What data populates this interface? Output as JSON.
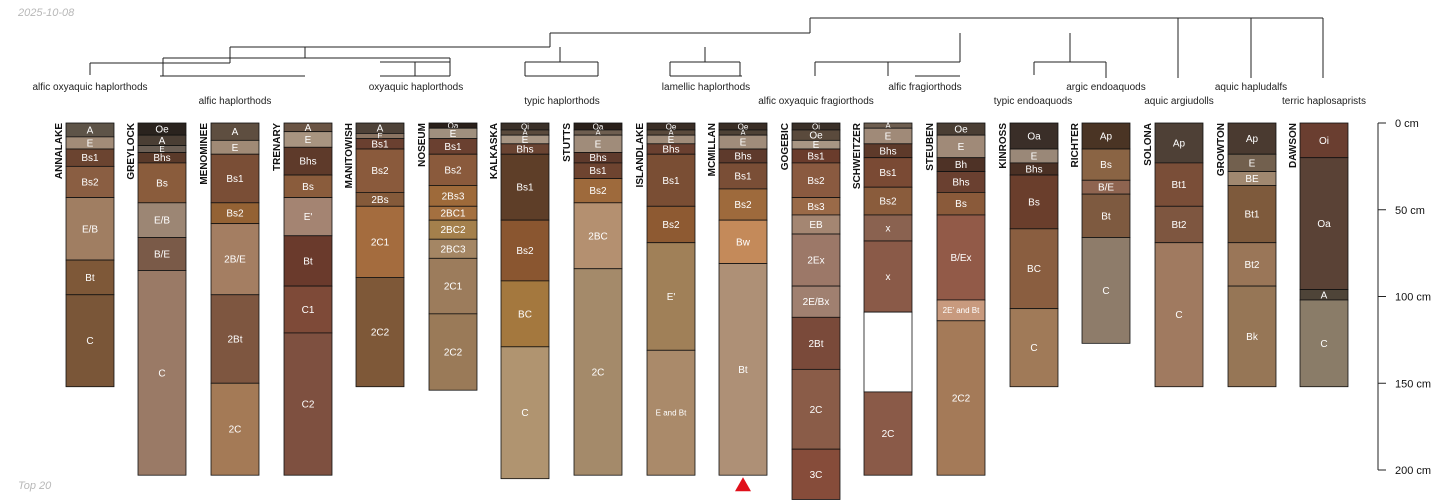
{
  "header": {
    "date": "2025-10-08"
  },
  "footer": {
    "caption": "Top 20"
  },
  "axis": {
    "unit": "cm",
    "ticks": [
      0,
      50,
      100,
      150,
      200
    ]
  },
  "taxa": [
    "alfic oxyaquic haplorthods",
    "alfic haplorthods",
    "oxyaquic haplorthods",
    "typic haplorthods",
    "lamellic haplorthods",
    "alfic oxyaquic fragiorthods",
    "alfic fragiorthods",
    "typic endoaquods",
    "argic endoaquods",
    "aquic argiudolls",
    "aquic hapludalfs",
    "terric haplosaprists"
  ],
  "profiles": [
    {
      "name": "ANNALAKE",
      "horizons": [
        {
          "name": "A",
          "top": 0,
          "bottom": 8,
          "color": "#5e5448"
        },
        {
          "name": "E",
          "top": 8,
          "bottom": 15,
          "color": "#a28c78"
        },
        {
          "name": "Bs1",
          "top": 15,
          "bottom": 25,
          "color": "#6b4430"
        },
        {
          "name": "Bs2",
          "top": 25,
          "bottom": 43,
          "color": "#8a5e42"
        },
        {
          "name": "E/B",
          "top": 43,
          "bottom": 79,
          "color": "#a07e62"
        },
        {
          "name": "Bt",
          "top": 79,
          "bottom": 99,
          "color": "#7e5838"
        },
        {
          "name": "C",
          "top": 99,
          "bottom": 152,
          "color": "#7a5638"
        }
      ]
    },
    {
      "name": "GREYLOCK",
      "horizons": [
        {
          "name": "Oe",
          "top": 0,
          "bottom": 7,
          "color": "#2a231e"
        },
        {
          "name": "A",
          "top": 7,
          "bottom": 13,
          "color": "#4a3e34"
        },
        {
          "name": "E",
          "top": 13,
          "bottom": 17,
          "color": "#6a5e54"
        },
        {
          "name": "Bhs",
          "top": 17,
          "bottom": 23,
          "color": "#5a3a2a"
        },
        {
          "name": "Bs",
          "top": 23,
          "bottom": 46,
          "color": "#8a5c3c"
        },
        {
          "name": "E/B",
          "top": 46,
          "bottom": 66,
          "color": "#9c8674"
        },
        {
          "name": "B/E",
          "top": 66,
          "bottom": 85,
          "color": "#7a5a48"
        },
        {
          "name": "C",
          "top": 85,
          "bottom": 203,
          "color": "#9a7a66"
        }
      ]
    },
    {
      "name": "MENOMINEE",
      "horizons": [
        {
          "name": "A",
          "top": 0,
          "bottom": 10,
          "color": "#5e4e40"
        },
        {
          "name": "E",
          "top": 10,
          "bottom": 18,
          "color": "#a08a76"
        },
        {
          "name": "Bs1",
          "top": 18,
          "bottom": 46,
          "color": "#7a4e36"
        },
        {
          "name": "Bs2",
          "top": 46,
          "bottom": 58,
          "color": "#946234"
        },
        {
          "name": "2B/E",
          "top": 58,
          "bottom": 99,
          "color": "#a47e62"
        },
        {
          "name": "2Bt",
          "top": 99,
          "bottom": 150,
          "color": "#7e5640"
        },
        {
          "name": "2C",
          "top": 150,
          "bottom": 203,
          "color": "#a47a56"
        }
      ]
    },
    {
      "name": "TRENARY",
      "horizons": [
        {
          "name": "A",
          "top": 0,
          "bottom": 5,
          "color": "#6a5444"
        },
        {
          "name": "E",
          "top": 5,
          "bottom": 14,
          "color": "#a89480"
        },
        {
          "name": "Bhs",
          "top": 14,
          "bottom": 30,
          "color": "#5e3a2a"
        },
        {
          "name": "Bs",
          "top": 30,
          "bottom": 43,
          "color": "#8a5c3c"
        },
        {
          "name": "E'",
          "top": 43,
          "bottom": 65,
          "color": "#a48472"
        },
        {
          "name": "Bt",
          "top": 65,
          "bottom": 94,
          "color": "#6a3a2c"
        },
        {
          "name": "C1",
          "top": 94,
          "bottom": 121,
          "color": "#7e4a38"
        },
        {
          "name": "C2",
          "top": 121,
          "bottom": 203,
          "color": "#7e5040"
        }
      ]
    },
    {
      "name": "MANITOWISH",
      "horizons": [
        {
          "name": "A",
          "top": 0,
          "bottom": 6,
          "color": "#4e4238"
        },
        {
          "name": "E",
          "top": 6,
          "bottom": 9,
          "color": "#8a7462"
        },
        {
          "name": "Bs1",
          "top": 9,
          "bottom": 15,
          "color": "#6a4030"
        },
        {
          "name": "Bs2",
          "top": 15,
          "bottom": 40,
          "color": "#8a5a3c"
        },
        {
          "name": "2Bs",
          "top": 40,
          "bottom": 48,
          "color": "#845a3a"
        },
        {
          "name": "2C1",
          "top": 48,
          "bottom": 89,
          "color": "#a46c3e"
        },
        {
          "name": "2C2",
          "top": 89,
          "bottom": 152,
          "color": "#7e5838"
        }
      ]
    },
    {
      "name": "NOSEUM",
      "horizons": [
        {
          "name": "Oa",
          "top": 0,
          "bottom": 3,
          "color": "#2a201a"
        },
        {
          "name": "E",
          "top": 3,
          "bottom": 9,
          "color": "#a0907e"
        },
        {
          "name": "Bs1",
          "top": 9,
          "bottom": 18,
          "color": "#6a4030"
        },
        {
          "name": "Bs2",
          "top": 18,
          "bottom": 36,
          "color": "#8a5a3c"
        },
        {
          "name": "2Bs3",
          "top": 36,
          "bottom": 48,
          "color": "#9e6a3a"
        },
        {
          "name": "2BC1",
          "top": 48,
          "bottom": 56,
          "color": "#a47040"
        },
        {
          "name": "2BC2",
          "top": 56,
          "bottom": 67,
          "color": "#a4804c"
        },
        {
          "name": "2BC3",
          "top": 67,
          "bottom": 78,
          "color": "#a48664"
        },
        {
          "name": "2C1",
          "top": 78,
          "bottom": 110,
          "color": "#9c7c5c"
        },
        {
          "name": "2C2",
          "top": 110,
          "bottom": 154,
          "color": "#9a7a58"
        }
      ]
    },
    {
      "name": "KALKASKA",
      "horizons": [
        {
          "name": "Oi",
          "top": 0,
          "bottom": 4,
          "color": "#3a3028"
        },
        {
          "name": "A",
          "top": 4,
          "bottom": 7,
          "color": "#5a4a3c"
        },
        {
          "name": "E",
          "top": 7,
          "bottom": 12,
          "color": "#a89684"
        },
        {
          "name": "Bhs",
          "top": 12,
          "bottom": 18,
          "color": "#6a4432"
        },
        {
          "name": "Bs1",
          "top": 18,
          "bottom": 56,
          "color": "#5e3e28"
        },
        {
          "name": "Bs2",
          "top": 56,
          "bottom": 91,
          "color": "#8a5630"
        },
        {
          "name": "BC",
          "top": 91,
          "bottom": 129,
          "color": "#a4783e"
        },
        {
          "name": "C",
          "top": 129,
          "bottom": 205,
          "color": "#b09470"
        }
      ]
    },
    {
      "name": "STUTTS",
      "horizons": [
        {
          "name": "Oa",
          "top": 0,
          "bottom": 4,
          "color": "#2a201a"
        },
        {
          "name": "A",
          "top": 4,
          "bottom": 7,
          "color": "#6e5e50"
        },
        {
          "name": "E",
          "top": 7,
          "bottom": 17,
          "color": "#a08c7a"
        },
        {
          "name": "Bhs",
          "top": 17,
          "bottom": 23,
          "color": "#5e3a2c"
        },
        {
          "name": "Bs1",
          "top": 23,
          "bottom": 32,
          "color": "#6e4430"
        },
        {
          "name": "Bs2",
          "top": 32,
          "bottom": 46,
          "color": "#9e6a3c"
        },
        {
          "name": "2BC",
          "top": 46,
          "bottom": 84,
          "color": "#b49070"
        },
        {
          "name": "2C",
          "top": 84,
          "bottom": 203,
          "color": "#a48a6a"
        }
      ]
    },
    {
      "name": "ISLANDLAKE",
      "horizons": [
        {
          "name": "Oe",
          "top": 0,
          "bottom": 4,
          "color": "#3a2e26"
        },
        {
          "name": "A",
          "top": 4,
          "bottom": 7,
          "color": "#5a4a3c"
        },
        {
          "name": "E",
          "top": 7,
          "bottom": 12,
          "color": "#a08c7a"
        },
        {
          "name": "Bhs",
          "top": 12,
          "bottom": 18,
          "color": "#6a4030"
        },
        {
          "name": "Bs1",
          "top": 18,
          "bottom": 48,
          "color": "#7a4e34"
        },
        {
          "name": "Bs2",
          "top": 48,
          "bottom": 69,
          "color": "#8e5a32"
        },
        {
          "name": "E'",
          "top": 69,
          "bottom": 131,
          "color": "#a08058"
        },
        {
          "name": "E and Bt",
          "top": 131,
          "bottom": 203,
          "color": "#aa8a6a"
        }
      ]
    },
    {
      "name": "MCMILLAN",
      "horizons": [
        {
          "name": "Oe",
          "top": 0,
          "bottom": 4,
          "color": "#3a2e26"
        },
        {
          "name": "A",
          "top": 4,
          "bottom": 7,
          "color": "#4e4236"
        },
        {
          "name": "E",
          "top": 7,
          "bottom": 15,
          "color": "#a08c7a"
        },
        {
          "name": "Bhs",
          "top": 15,
          "bottom": 23,
          "color": "#5e3a2c"
        },
        {
          "name": "Bs1",
          "top": 23,
          "bottom": 38,
          "color": "#7a4e36"
        },
        {
          "name": "Bs2",
          "top": 38,
          "bottom": 56,
          "color": "#9e6a3c"
        },
        {
          "name": "Bw",
          "top": 56,
          "bottom": 81,
          "color": "#c48a5a"
        },
        {
          "name": "Bt",
          "top": 81,
          "bottom": 203,
          "color": "#ae9076"
        }
      ]
    },
    {
      "name": "GOGEBIC",
      "horizons": [
        {
          "name": "Oi",
          "top": 0,
          "bottom": 4,
          "color": "#3a3028"
        },
        {
          "name": "Oe",
          "top": 4,
          "bottom": 10,
          "color": "#5a4a3c"
        },
        {
          "name": "E",
          "top": 10,
          "bottom": 15,
          "color": "#a89684"
        },
        {
          "name": "Bs1",
          "top": 15,
          "bottom": 23,
          "color": "#6a3c2c"
        },
        {
          "name": "Bs2",
          "top": 23,
          "bottom": 43,
          "color": "#8a5a40"
        },
        {
          "name": "Bs3",
          "top": 43,
          "bottom": 53,
          "color": "#9a6a48"
        },
        {
          "name": "EB",
          "top": 53,
          "bottom": 64,
          "color": "#a48672"
        },
        {
          "name": "2Ex",
          "top": 64,
          "bottom": 94,
          "color": "#9c7868"
        },
        {
          "name": "2E/Bx",
          "top": 94,
          "bottom": 112,
          "color": "#a08070"
        },
        {
          "name": "2Bt",
          "top": 112,
          "bottom": 142,
          "color": "#7a4a3a"
        },
        {
          "name": "2C",
          "top": 142,
          "bottom": 188,
          "color": "#8a5c48"
        },
        {
          "name": "3C",
          "top": 188,
          "bottom": 217,
          "color": "#864c3a"
        }
      ]
    },
    {
      "name": "SCHWEITZER",
      "horizons": [
        {
          "name": "A",
          "top": 0,
          "bottom": 3,
          "color": "#6e5e50"
        },
        {
          "name": "E",
          "top": 3,
          "bottom": 12,
          "color": "#a08a78"
        },
        {
          "name": "Bhs",
          "top": 12,
          "bottom": 20,
          "color": "#5e3a2a"
        },
        {
          "name": "Bs1",
          "top": 20,
          "bottom": 37,
          "color": "#7a4a34"
        },
        {
          "name": "Bs2",
          "top": 37,
          "bottom": 53,
          "color": "#8a5c3c"
        },
        {
          "name": "x",
          "top": 53,
          "bottom": 68,
          "color": "#8a6250"
        },
        {
          "name": "x",
          "top": 68,
          "bottom": 109,
          "color": "#8a5a48"
        },
        {
          "name": "",
          "top": 109,
          "bottom": 155,
          "color": "#ffffff"
        },
        {
          "name": "2C",
          "top": 155,
          "bottom": 203,
          "color": "#8a5a48"
        }
      ]
    },
    {
      "name": "STEUBEN",
      "horizons": [
        {
          "name": "Oe",
          "top": 0,
          "bottom": 7,
          "color": "#4a3e34"
        },
        {
          "name": "E",
          "top": 7,
          "bottom": 20,
          "color": "#a08a78"
        },
        {
          "name": "Bh",
          "top": 20,
          "bottom": 28,
          "color": "#4e3226"
        },
        {
          "name": "Bhs",
          "top": 28,
          "bottom": 40,
          "color": "#6a4030"
        },
        {
          "name": "Bs",
          "top": 40,
          "bottom": 53,
          "color": "#8a5a3a"
        },
        {
          "name": "B/Ex",
          "top": 53,
          "bottom": 102,
          "color": "#925a48"
        },
        {
          "name": "2E' and Bt",
          "top": 102,
          "bottom": 114,
          "color": "#c89a7e"
        },
        {
          "name": "2C2",
          "top": 114,
          "bottom": 203,
          "color": "#a47a58"
        }
      ]
    },
    {
      "name": "KINROSS",
      "horizons": [
        {
          "name": "Oa",
          "top": 0,
          "bottom": 15,
          "color": "#3a2e28"
        },
        {
          "name": "E",
          "top": 15,
          "bottom": 23,
          "color": "#9a8878"
        },
        {
          "name": "Bhs",
          "top": 23,
          "bottom": 30,
          "color": "#4a3024"
        },
        {
          "name": "Bs",
          "top": 30,
          "bottom": 61,
          "color": "#6a3e2c"
        },
        {
          "name": "BC",
          "top": 61,
          "bottom": 107,
          "color": "#8a5e40"
        },
        {
          "name": "C",
          "top": 107,
          "bottom": 152,
          "color": "#a07a58"
        }
      ]
    },
    {
      "name": "RICHTER",
      "horizons": [
        {
          "name": "Ap",
          "top": 0,
          "bottom": 15,
          "color": "#4a3424"
        },
        {
          "name": "Bs",
          "top": 15,
          "bottom": 33,
          "color": "#8a6444"
        },
        {
          "name": "B/E",
          "top": 33,
          "bottom": 41,
          "color": "#8e6450"
        },
        {
          "name": "Bt",
          "top": 41,
          "bottom": 66,
          "color": "#7e5a40"
        },
        {
          "name": "C",
          "top": 66,
          "bottom": 127,
          "color": "#8e7c6a"
        }
      ]
    },
    {
      "name": "SOLONA",
      "horizons": [
        {
          "name": "Ap",
          "top": 0,
          "bottom": 23,
          "color": "#4e4036"
        },
        {
          "name": "Bt1",
          "top": 23,
          "bottom": 48,
          "color": "#7a4e38"
        },
        {
          "name": "Bt2",
          "top": 48,
          "bottom": 69,
          "color": "#7e5640"
        },
        {
          "name": "C",
          "top": 69,
          "bottom": 152,
          "color": "#a07a60"
        }
      ]
    },
    {
      "name": "GROWTON",
      "horizons": [
        {
          "name": "Ap",
          "top": 0,
          "bottom": 18,
          "color": "#4a3a30"
        },
        {
          "name": "E",
          "top": 18,
          "bottom": 28,
          "color": "#72604e"
        },
        {
          "name": "BE",
          "top": 28,
          "bottom": 36,
          "color": "#a08870"
        },
        {
          "name": "Bt1",
          "top": 36,
          "bottom": 69,
          "color": "#7e5a3c"
        },
        {
          "name": "Bt2",
          "top": 69,
          "bottom": 94,
          "color": "#9a7658"
        },
        {
          "name": "Bk",
          "top": 94,
          "bottom": 152,
          "color": "#967656"
        }
      ]
    },
    {
      "name": "DAWSON",
      "horizons": [
        {
          "name": "Oi",
          "top": 0,
          "bottom": 20,
          "color": "#6a3e30"
        },
        {
          "name": "Oa",
          "top": 20,
          "bottom": 96,
          "color": "#5a4236"
        },
        {
          "name": "A",
          "top": 96,
          "bottom": 102,
          "color": "#4e4438"
        },
        {
          "name": "C",
          "top": 102,
          "bottom": 152,
          "color": "#8a7c68"
        }
      ]
    }
  ]
}
